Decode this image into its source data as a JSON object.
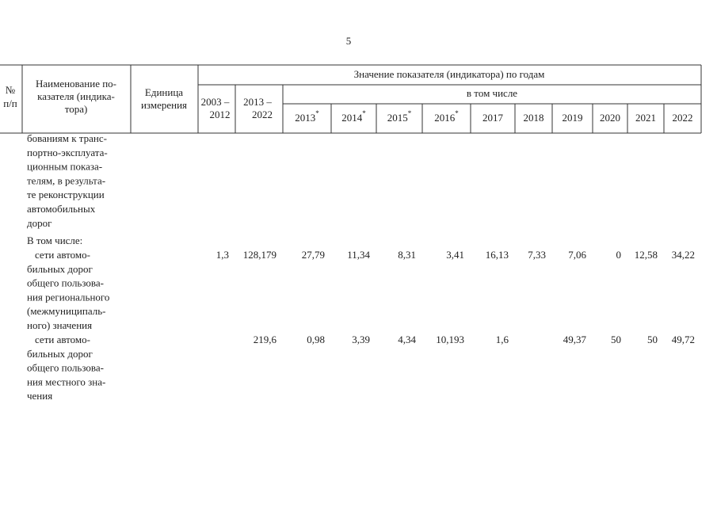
{
  "page_number": "5",
  "table": {
    "header": {
      "number": [
        "№",
        "п/п"
      ],
      "name": [
        "Наименование по-",
        "казателя (индика-",
        "тора)"
      ],
      "unit": [
        "Единица",
        "измерения"
      ],
      "group": "Значение показателя (индикатора) по годам",
      "periods": [
        [
          "2003 –",
          "2012"
        ],
        [
          "2013 –",
          "2022"
        ]
      ],
      "subgroup": "в том числе",
      "years": [
        {
          "text": "2013",
          "sup": "*"
        },
        {
          "text": "2014",
          "sup": "*"
        },
        {
          "text": "2015",
          "sup": "*"
        },
        {
          "text": "2016",
          "sup": "*"
        },
        {
          "text": "2017"
        },
        {
          "text": "2018"
        },
        {
          "text": "2019"
        },
        {
          "text": "2020"
        },
        {
          "text": "2021"
        },
        {
          "text": "2022"
        }
      ]
    },
    "rows": [
      {
        "name": [
          "бованиям к транс-",
          "портно-эксплуата-",
          "ционным показа-",
          "телям, в результа-",
          "те реконструкции",
          "автомобильных",
          "дорог"
        ]
      },
      {
        "name": [
          "В том числе:"
        ]
      },
      {
        "name": [
          "сети автомо-",
          "бильных дорог",
          "общего пользова-",
          "ния регионального",
          "(межмуниципаль-",
          "ного) значения"
        ],
        "values": [
          "1,3",
          "128,179",
          "27,79",
          "11,34",
          "8,31",
          "3,41",
          "16,13",
          "7,33",
          "7,06",
          "0",
          "12,58",
          "34,22"
        ]
      },
      {
        "name": [
          "сети автомо-",
          "бильных дорог",
          "общего пользова-",
          "ния местного зна-",
          "чения"
        ],
        "values": [
          null,
          "219,6",
          "0,98",
          "3,39",
          "4,34",
          "10,193",
          "1,6",
          null,
          "49,37",
          "50",
          "50",
          "49,72"
        ]
      }
    ]
  }
}
